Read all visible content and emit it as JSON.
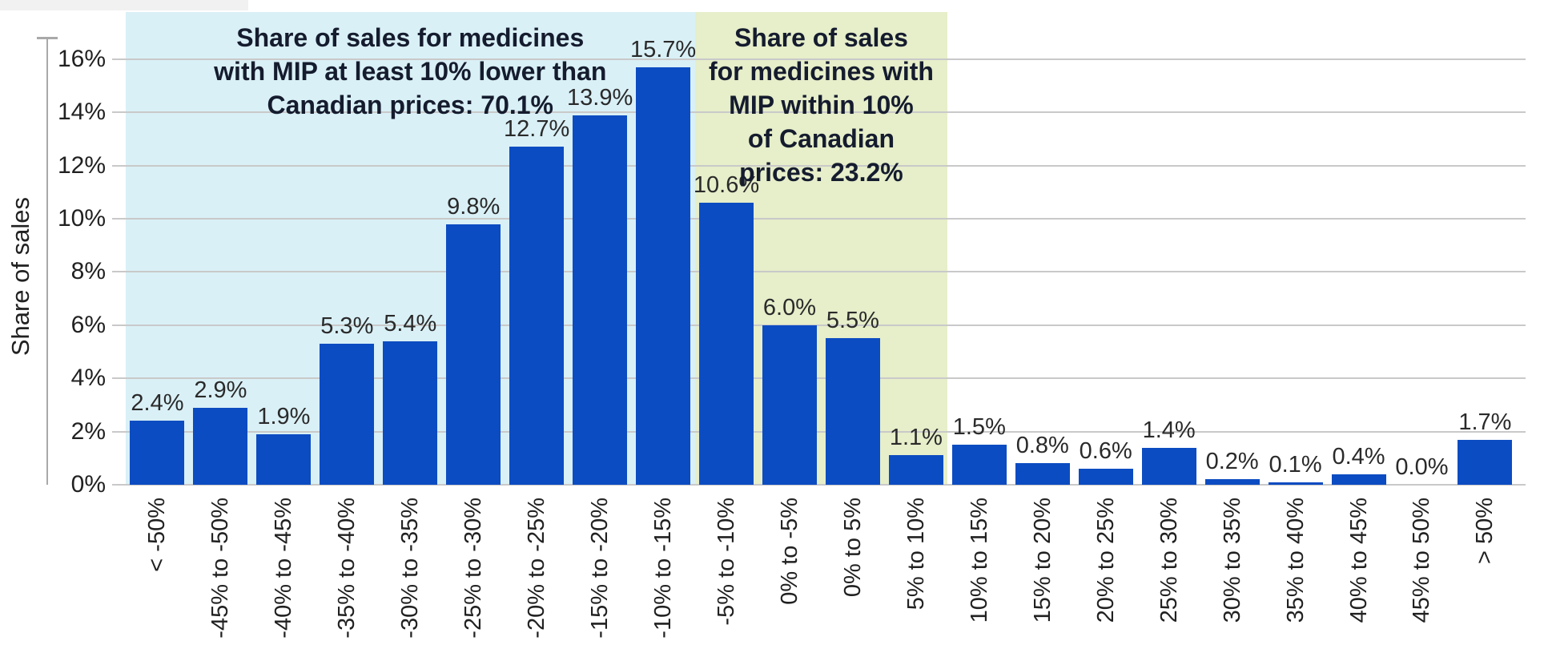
{
  "chart_data": {
    "type": "bar",
    "title": "",
    "ylabel": "Share of sales",
    "xlabel": "",
    "ylim": [
      0,
      16
    ],
    "ytick_step": 2,
    "ytick_labels": [
      "0%",
      "2%",
      "4%",
      "6%",
      "8%",
      "10%",
      "12%",
      "14%",
      "16%"
    ],
    "grid": true,
    "bar_color": "#0c4cc2",
    "grid_color": "#c9c9c9",
    "axis_color": "#a9a9a9",
    "categories": [
      "< -50%",
      "-45% to -50%",
      "-40% to -45%",
      "-35% to -40%",
      "-30% to -35%",
      "-25% to -30%",
      "-20% to -25%",
      "-15% to -20%",
      "-10% to -15%",
      "-5% to -10%",
      "0% to -5%",
      "0% to 5%",
      "5% to 10%",
      "10% to 15%",
      "15% to 20%",
      "20% to 25%",
      "25% to 30%",
      "30% to 35%",
      "35% to 40%",
      "40% to 45%",
      "45% to 50%",
      "> 50%"
    ],
    "values": [
      2.4,
      2.9,
      1.9,
      5.3,
      5.4,
      9.8,
      12.7,
      13.9,
      15.7,
      10.6,
      6.0,
      5.5,
      1.1,
      1.5,
      0.8,
      0.6,
      1.4,
      0.2,
      0.1,
      0.4,
      0.0,
      1.7
    ],
    "value_labels": [
      "2.4%",
      "2.9%",
      "1.9%",
      "5.3%",
      "5.4%",
      "9.8%",
      "12.7%",
      "13.9%",
      "15.7%",
      "10.6%",
      "6.0%",
      "5.5%",
      "1.1%",
      "1.5%",
      "0.8%",
      "0.6%",
      "1.4%",
      "0.2%",
      "0.1%",
      "0.4%",
      "0.0%",
      "1.7%"
    ],
    "regions": [
      {
        "name": "mip-lower-than-canadian",
        "start_index": 0,
        "end_index": 8,
        "color": "#d9f0f6"
      },
      {
        "name": "mip-within-10pct",
        "start_index": 9,
        "end_index": 12,
        "color": "#e6eeca"
      }
    ],
    "annotations": [
      {
        "region": "mip-lower-than-canadian",
        "text": "Share of sales for medicines\nwith MIP at least 10% lower than\nCanadian prices: 70.1%"
      },
      {
        "region": "mip-within-10pct",
        "text": "Share of sales\nfor medicines with\nMIP within 10%\nof Canadian\nprices: 23.2%"
      }
    ],
    "legend_position": "none"
  }
}
